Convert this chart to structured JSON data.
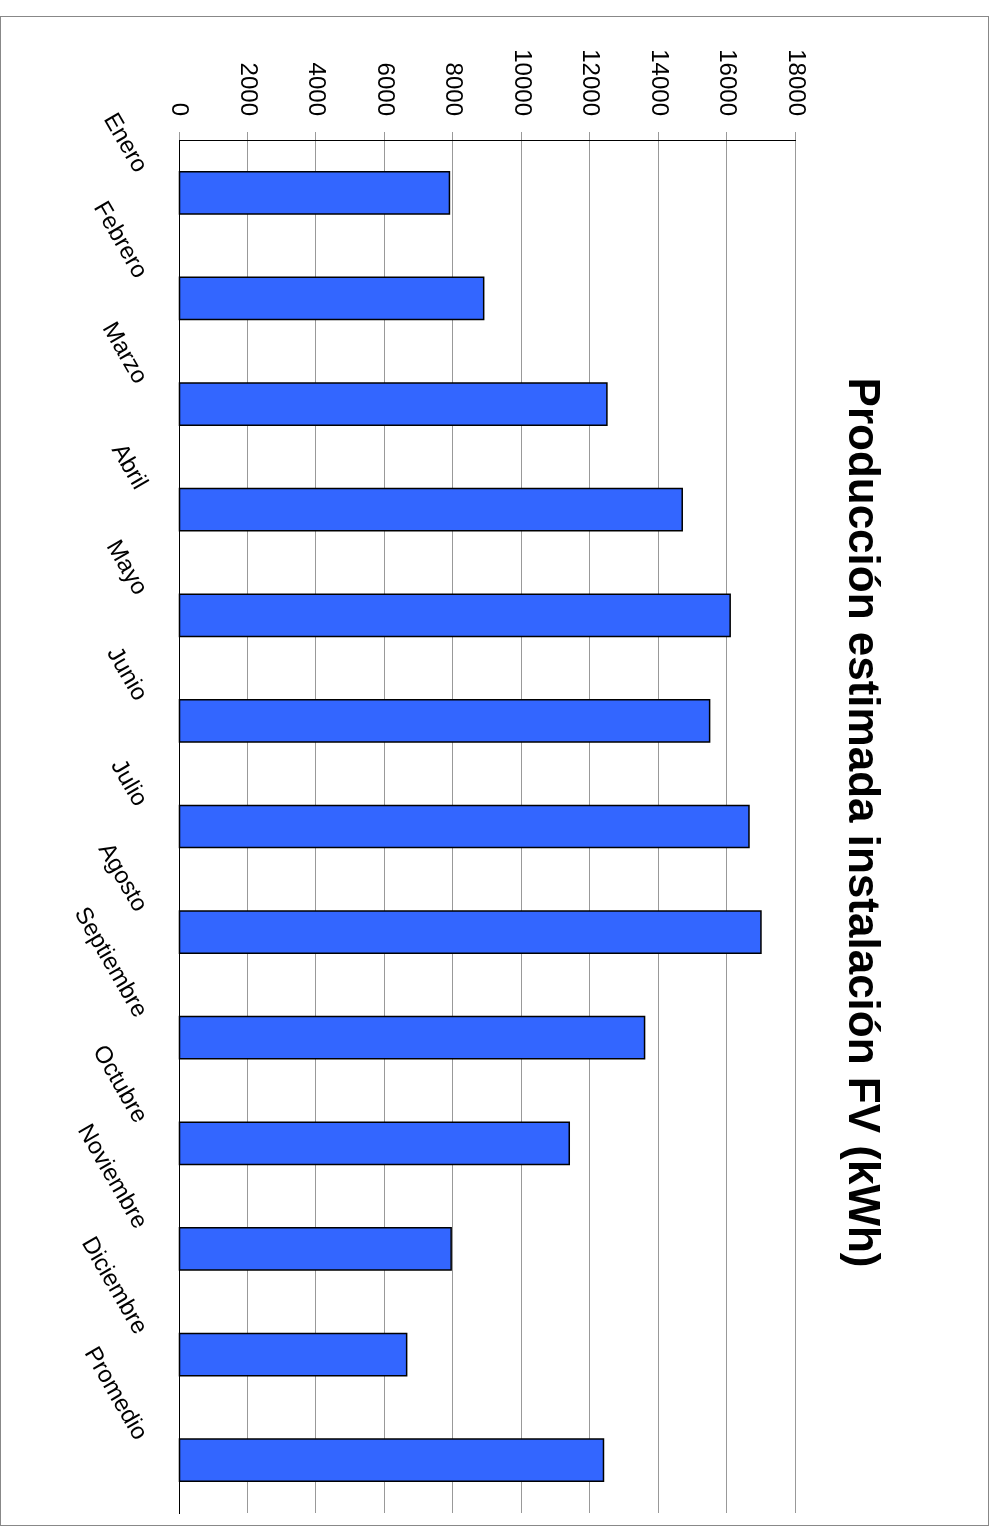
{
  "chart_data": {
    "type": "bar",
    "orientation": "horizontal",
    "title": "Producción estimada instalación FV (kWh)",
    "categories": [
      "Enero",
      "Febrero",
      "Marzo",
      "Abril",
      "Mayo",
      "Junio",
      "Julio",
      "Agosto",
      "Septiembre",
      "Octubre",
      "Noviembre",
      "Diciembre",
      "Promedio"
    ],
    "values": [
      7900,
      8900,
      12500,
      14700,
      16100,
      15500,
      16650,
      17000,
      13600,
      11400,
      7950,
      6650,
      12400
    ],
    "color": "#3366ff",
    "xlim": [
      0,
      18000
    ],
    "xticks": [
      0,
      2000,
      4000,
      6000,
      8000,
      10000,
      12000,
      14000,
      16000,
      18000
    ],
    "grid": "x",
    "legend": false
  }
}
